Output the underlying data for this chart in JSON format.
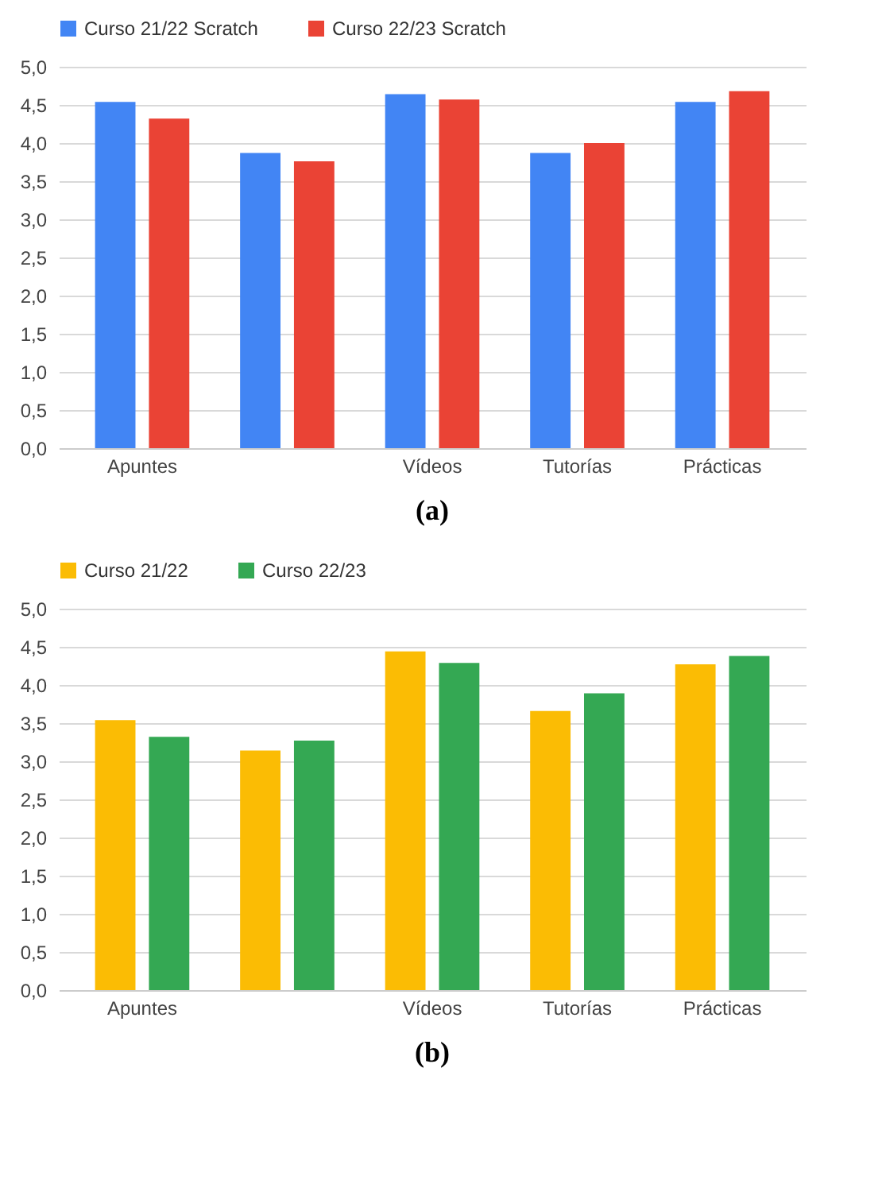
{
  "chart_data": [
    {
      "type": "bar",
      "title": "(a)",
      "categories": [
        "Apuntes",
        null,
        "Vídeos",
        "Tutorías",
        "Prácticas"
      ],
      "series": [
        {
          "name": "Curso 21/22 Scratch",
          "color": "#4285f4",
          "values": [
            4.54,
            3.87,
            4.64,
            3.87,
            4.54
          ]
        },
        {
          "name": "Curso 22/23 Scratch",
          "color": "#ea4335",
          "values": [
            4.32,
            3.76,
            4.57,
            4.0,
            4.68
          ]
        }
      ],
      "ylim": [
        0,
        5
      ],
      "yticks": [
        {
          "value": 0,
          "label": "0,0"
        },
        {
          "value": 0.5,
          "label": "0,5"
        },
        {
          "value": 1,
          "label": "1,0"
        },
        {
          "value": 1.5,
          "label": "1,5"
        },
        {
          "value": 2,
          "label": "2,0"
        },
        {
          "value": 2.5,
          "label": "2,5"
        },
        {
          "value": 3,
          "label": "3,0"
        },
        {
          "value": 3.5,
          "label": "3,5"
        },
        {
          "value": 4,
          "label": "4,0"
        },
        {
          "value": 4.5,
          "label": "4,5"
        },
        {
          "value": 5,
          "label": "5,0"
        }
      ],
      "grid": "y",
      "legend": "top"
    },
    {
      "type": "bar",
      "title": "(b)",
      "categories": [
        "Apuntes",
        null,
        "Vídeos",
        "Tutorías",
        "Prácticas"
      ],
      "series": [
        {
          "name": "Curso 21/22",
          "color": "#fbbc04",
          "values": [
            3.54,
            3.14,
            4.44,
            3.66,
            4.27
          ]
        },
        {
          "name": "Curso 22/23",
          "color": "#34a853",
          "values": [
            3.32,
            3.27,
            4.29,
            3.89,
            4.38
          ]
        }
      ],
      "ylim": [
        0,
        5
      ],
      "yticks": [
        {
          "value": 0,
          "label": "0,0"
        },
        {
          "value": 0.5,
          "label": "0,5"
        },
        {
          "value": 1,
          "label": "1,0"
        },
        {
          "value": 1.5,
          "label": "1,5"
        },
        {
          "value": 2,
          "label": "2,0"
        },
        {
          "value": 2.5,
          "label": "2,5"
        },
        {
          "value": 3,
          "label": "3,0"
        },
        {
          "value": 3.5,
          "label": "3,5"
        },
        {
          "value": 4,
          "label": "4,0"
        },
        {
          "value": 4.5,
          "label": "4,5"
        },
        {
          "value": 5,
          "label": "5,0"
        }
      ],
      "grid": "y",
      "legend": "top"
    }
  ]
}
